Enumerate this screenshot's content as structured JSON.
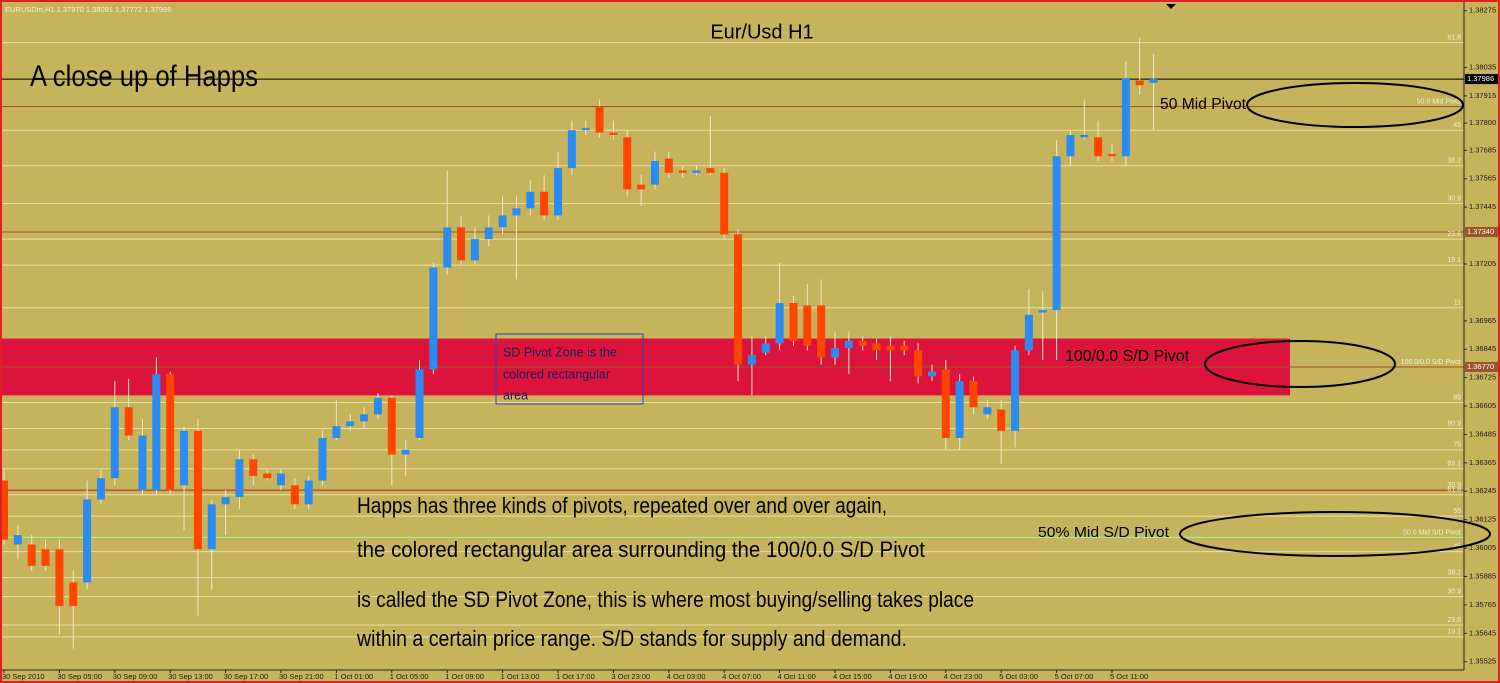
{
  "chart_data": {
    "type": "candlestick",
    "header": "EURUSDm,H1  1.37970 1.38091 1.37772 1.37986",
    "title": "Eur/Usd H1",
    "up_color": "#2a8cf0",
    "down_color": "#ff4500",
    "wick_color": "#efeacb",
    "categories": [
      "30 Sep 2010",
      null,
      null,
      null,
      "30 Sep 05:00",
      null,
      null,
      null,
      "30 Sep 09:00",
      null,
      null,
      null,
      "30 Sep 13:00",
      null,
      null,
      null,
      "30 Sep 17:00",
      null,
      null,
      null,
      "30 Sep 21:00",
      null,
      null,
      null,
      "1 Oct 01:00",
      null,
      null,
      null,
      "1 Oct 05:00",
      null,
      null,
      null,
      "1 Oct 09:00",
      null,
      null,
      null,
      "1 Oct 13:00",
      null,
      null,
      null,
      "1 Oct 17:00",
      null,
      null,
      null,
      "3 Oct 23:00",
      null,
      null,
      null,
      "4 Oct 03:00",
      null,
      null,
      null,
      "4 Oct 07:00",
      null,
      null,
      null,
      "4 Oct 11:00",
      null,
      null,
      null,
      "4 Oct 15:00",
      null,
      null,
      null,
      "4 Oct 19:00",
      null,
      null,
      null,
      "4 Oct 23:00",
      null,
      null,
      null,
      "5 Oct 03:00",
      null,
      null,
      null,
      "5 Oct 07:00",
      null,
      null,
      null,
      "5 Oct 11:00",
      null,
      null,
      null
    ],
    "open": [
      1.3629,
      1.3602,
      1.3602,
      1.36,
      1.36,
      1.3586,
      1.3586,
      1.3621,
      1.363,
      1.366,
      1.3625,
      1.3625,
      1.3674,
      1.3627,
      1.365,
      1.36,
      1.3619,
      1.3622,
      1.3638,
      1.3632,
      1.3627,
      1.3627,
      1.3619,
      1.3629,
      1.3647,
      1.3652,
      1.3654,
      1.3657,
      1.3664,
      1.364,
      1.3647,
      1.3676,
      1.3719,
      1.3736,
      1.3722,
      1.3731,
      1.3736,
      1.3741,
      1.3744,
      1.3751,
      1.3741,
      1.3761,
      1.3777,
      1.3787,
      1.3776,
      1.3774,
      1.3754,
      1.3754,
      1.3765,
      1.376,
      1.3759,
      1.3761,
      1.3759,
      1.3733,
      1.3678,
      1.3683,
      1.3687,
      1.3704,
      1.3703,
      1.3703,
      1.3681,
      1.3685,
      1.3688,
      1.3687,
      1.3686,
      1.3686,
      1.3684,
      1.3673,
      1.3676,
      1.3647,
      1.3671,
      1.3657,
      1.3659,
      1.365,
      1.3684,
      1.37,
      1.3701,
      1.3766,
      1.3774,
      1.3774,
      1.3767,
      1.3766,
      1.3798,
      1.3797
    ],
    "high": [
      1.3634,
      1.361,
      1.3606,
      1.3604,
      1.3604,
      1.3591,
      1.3629,
      1.3634,
      1.3671,
      1.3672,
      1.3655,
      1.3681,
      1.3675,
      1.3652,
      1.3655,
      1.3621,
      1.3625,
      1.3642,
      1.364,
      1.3634,
      1.3634,
      1.363,
      1.3631,
      1.365,
      1.3663,
      1.3657,
      1.366,
      1.3666,
      1.3665,
      1.3646,
      1.368,
      1.3721,
      1.376,
      1.3741,
      1.3736,
      1.3741,
      1.3749,
      1.3749,
      1.3756,
      1.3758,
      1.3768,
      1.3781,
      1.3781,
      1.379,
      1.3781,
      1.3777,
      1.3758,
      1.3768,
      1.3768,
      1.3762,
      1.3762,
      1.3783,
      1.3761,
      1.3735,
      1.369,
      1.369,
      1.3721,
      1.3707,
      1.3712,
      1.3714,
      1.3692,
      1.3692,
      1.369,
      1.3689,
      1.369,
      1.3688,
      1.3687,
      1.3678,
      1.368,
      1.3674,
      1.3673,
      1.3663,
      1.3663,
      1.3686,
      1.371,
      1.3709,
      1.3773,
      1.3777,
      1.379,
      1.3781,
      1.3771,
      1.3806,
      1.3816,
      1.38091
    ],
    "low": [
      1.3602,
      1.3596,
      1.3591,
      1.3591,
      1.3564,
      1.3558,
      1.3583,
      1.3619,
      1.3627,
      1.3646,
      1.3623,
      1.3623,
      1.3623,
      1.3608,
      1.3572,
      1.3583,
      1.3606,
      1.3617,
      1.3627,
      1.3629,
      1.3625,
      1.3617,
      1.3617,
      1.3627,
      1.3646,
      1.365,
      1.3651,
      1.3655,
      1.3627,
      1.3631,
      1.3646,
      1.3674,
      1.3716,
      1.372,
      1.372,
      1.3728,
      1.3733,
      1.3714,
      1.3741,
      1.3739,
      1.3739,
      1.3758,
      1.3775,
      1.3774,
      1.3773,
      1.3749,
      1.3745,
      1.3752,
      1.3757,
      1.3757,
      1.3758,
      1.3758,
      1.3731,
      1.3671,
      1.3665,
      1.3682,
      1.3684,
      1.3686,
      1.3684,
      1.3678,
      1.3678,
      1.3674,
      1.3684,
      1.368,
      1.3671,
      1.3682,
      1.367,
      1.3671,
      1.3642,
      1.3642,
      1.3657,
      1.3655,
      1.3636,
      1.3643,
      1.3682,
      1.368,
      1.368,
      1.3762,
      1.3773,
      1.3764,
      1.3764,
      1.3762,
      1.3792,
      1.37772
    ],
    "close": [
      1.3604,
      1.3606,
      1.3593,
      1.3593,
      1.3576,
      1.3576,
      1.3621,
      1.363,
      1.366,
      1.3648,
      1.3648,
      1.3674,
      1.3625,
      1.365,
      1.36,
      1.3619,
      1.3622,
      1.3638,
      1.3631,
      1.363,
      1.3632,
      1.3619,
      1.3629,
      1.3647,
      1.3652,
      1.3654,
      1.3657,
      1.3664,
      1.364,
      1.3642,
      1.3676,
      1.3719,
      1.3736,
      1.3722,
      1.3731,
      1.3736,
      1.3741,
      1.3744,
      1.3751,
      1.3741,
      1.3761,
      1.3777,
      1.3778,
      1.3776,
      1.3775,
      1.3752,
      1.3752,
      1.3764,
      1.3759,
      1.3759,
      1.376,
      1.3759,
      1.3733,
      1.3678,
      1.3682,
      1.3687,
      1.3704,
      1.3688,
      1.3686,
      1.3681,
      1.3685,
      1.3688,
      1.3686,
      1.3684,
      1.3684,
      1.3684,
      1.3673,
      1.3675,
      1.3647,
      1.3671,
      1.366,
      1.366,
      1.365,
      1.3684,
      1.3699,
      1.3701,
      1.3766,
      1.3775,
      1.3775,
      1.3766,
      1.3766,
      1.3799,
      1.3796,
      1.37986
    ],
    "ylim": [
      1.3549,
      1.3832
    ],
    "yticks": [
      1.38275,
      1.38035,
      1.37915,
      {
        "value": 1.378,
        "label": "1.37800"
      },
      1.37685,
      1.37565,
      1.37445,
      1.37205,
      1.36965,
      1.36845,
      1.36725,
      1.36605,
      1.36485,
      1.36365,
      1.36245,
      1.36125,
      1.36005,
      1.35885,
      1.35765,
      1.35645,
      1.35525
    ],
    "levels": [
      {
        "label": "61.8",
        "value": 1.3814,
        "color": "#e9dfa0"
      },
      {
        "label": "50.0 Mid Pivot",
        "value": 1.3787,
        "color": "#a0522d"
      },
      {
        "label": "45",
        "value": 1.3777,
        "color": "#e9dfa0"
      },
      {
        "label": "38.2",
        "value": 1.3762,
        "color": "#e9dfa0"
      },
      {
        "label": "30.9",
        "value": 1.3746,
        "color": "#e9dfa0"
      },
      {
        "label": "23.6",
        "value": 1.3731,
        "color": "#e9dfa0"
      },
      {
        "label": "19.1",
        "value": 1.372,
        "color": "#e9dfa0"
      },
      {
        "label": "11",
        "value": 1.3702,
        "color": "#e9dfa0"
      },
      {
        "label": "100.0/0.0 S/D Pivot",
        "value": 1.3677,
        "color": "#a0522d"
      },
      {
        "label": "89",
        "value": 1.3662,
        "color": "#e9dfa0"
      },
      {
        "label": "80.9",
        "value": 1.3651,
        "color": "#e9dfa0"
      },
      {
        "label": "75",
        "value": 1.3642,
        "color": "#e9dfa0"
      },
      {
        "label": "69.1",
        "value": 1.3634,
        "color": "#e9dfa0"
      },
      {
        "label": "30.9",
        "value": 1.3625,
        "color": "#b22222"
      },
      {
        "label": "61.8",
        "value": 1.3623,
        "color": "#e9dfa0"
      },
      {
        "label": "55",
        "value": 1.3614,
        "color": "#e9dfa0"
      },
      {
        "label": "50.0 Mid S/D Pivot",
        "value": 1.3605,
        "color": "#98fb98"
      },
      {
        "label": "45",
        "value": 1.3599,
        "color": "#e9dfa0"
      },
      {
        "label": "38.2",
        "value": 1.3588,
        "color": "#e9dfa0"
      },
      {
        "label": "30.9",
        "value": 1.358,
        "color": "#e9dfa0"
      },
      {
        "label": "23.6",
        "value": 1.3568,
        "color": "#e9dfa0"
      },
      {
        "label": "19.1",
        "value": 1.3563,
        "color": "#e9dfa0"
      }
    ],
    "markers": [
      {
        "value": 1.37986,
        "color": "#000000"
      },
      {
        "value": 1.3734,
        "label": "1.37340",
        "color": "#a0522d"
      },
      {
        "value": 1.3677,
        "label": "1.36770",
        "color": "#a0522d"
      }
    ],
    "zone": {
      "low": 1.3665,
      "high": 1.3689,
      "color": "#dc143c"
    },
    "annotations": [
      "A close up of Happs",
      "50 Mid Pivot",
      "100/0.0 S/D Pivot",
      "50% Mid S/D Pivot"
    ],
    "box_text": [
      "SD Pivot Zone is the",
      "colored rectangular",
      "area"
    ],
    "paragraph": [
      "Happs has three kinds of pivots, repeated over and over again,",
      "the colored rectangular area surrounding the 100/0.0 S/D Pivot",
      "is called the SD Pivot Zone, this is where most buying/selling takes place",
      "within a certain price range.  S/D stands for supply and demand."
    ]
  }
}
